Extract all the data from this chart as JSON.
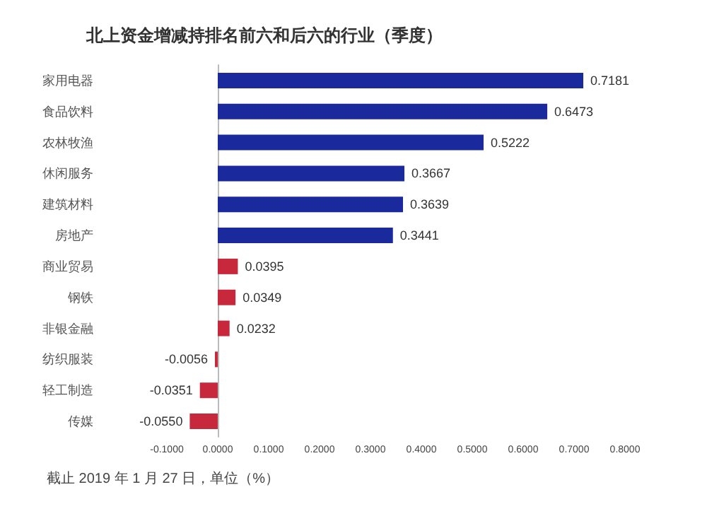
{
  "chart_data": {
    "type": "bar",
    "orientation": "horizontal",
    "title": "北上资金增减持排名前六和后六的行业（季度）",
    "categories": [
      "家用电器",
      "食品饮料",
      "农林牧渔",
      "休闲服务",
      "建筑材料",
      "房地产",
      "商业贸易",
      "钢铁",
      "非银金融",
      "纺织服装",
      "轻工制造",
      "传媒"
    ],
    "values": [
      0.7181,
      0.6473,
      0.5222,
      0.3667,
      0.3639,
      0.3441,
      0.0395,
      0.0349,
      0.0232,
      -0.0056,
      -0.0351,
      -0.055
    ],
    "value_labels": [
      "0.7181",
      "0.6473",
      "0.5222",
      "0.3667",
      "0.3639",
      "0.3441",
      "0.0395",
      "0.0349",
      "0.0232",
      "-0.0056",
      "-0.0351",
      "-0.0550"
    ],
    "colors": [
      "#1a2a9c",
      "#1a2a9c",
      "#1a2a9c",
      "#1a2a9c",
      "#1a2a9c",
      "#1a2a9c",
      "#c8283c",
      "#c8283c",
      "#c8283c",
      "#c8283c",
      "#c8283c",
      "#c8283c"
    ],
    "xlim": [
      -0.1,
      0.8
    ],
    "xticks": [
      {
        "value": -0.1,
        "label": "-0.1000"
      },
      {
        "value": 0,
        "label": "0.0000"
      },
      {
        "value": 0.1,
        "label": "0.1000"
      },
      {
        "value": 0.2,
        "label": "0.2000"
      },
      {
        "value": 0.3,
        "label": "0.3000"
      },
      {
        "value": 0.4,
        "label": "0.4000"
      },
      {
        "value": 0.5,
        "label": "0.5000"
      },
      {
        "value": 0.6,
        "label": "0.6000"
      },
      {
        "value": 0.7,
        "label": "0.7000"
      },
      {
        "value": 0.8,
        "label": "0.8000"
      }
    ],
    "annotations": [
      "截止 2019 年 1 月 27 日，单位（%）"
    ]
  }
}
